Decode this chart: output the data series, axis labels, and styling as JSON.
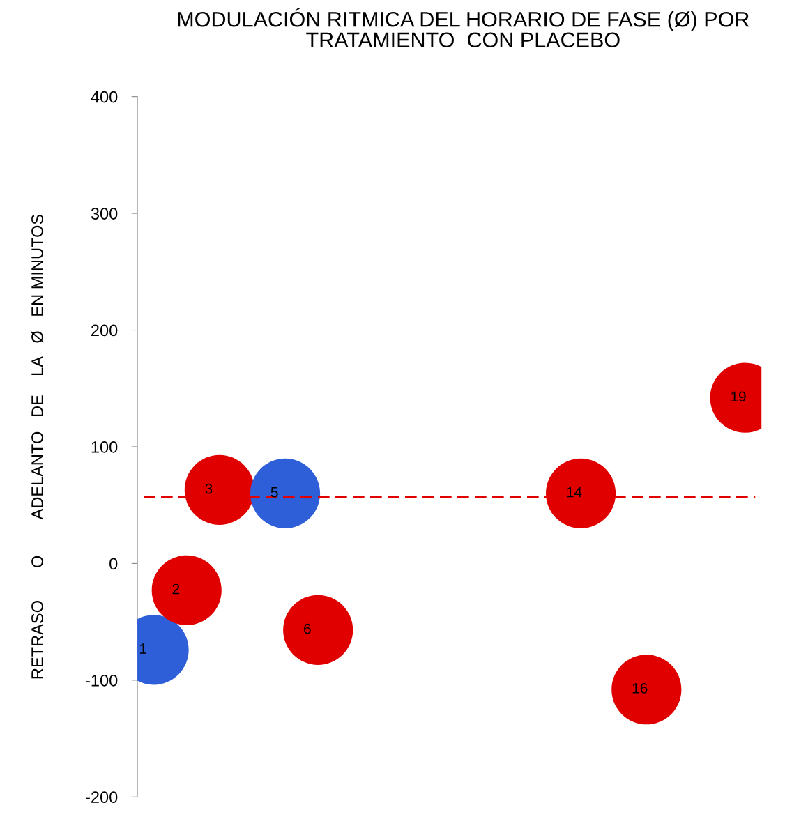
{
  "chart_data": {
    "type": "scatter",
    "title": "MODULACIÓN RITMICA DEL HORARIO DE FASE (Ø) POR\nTRATAMIENTO  CON PLACEBO",
    "ylabel": "RETRASO       O        ADELANTO   DE    LA   Ø   EN MINUTOS",
    "categories": [
      null,
      null,
      null,
      null,
      null,
      null,
      null,
      null,
      null,
      null,
      null,
      null,
      null,
      null,
      null,
      null,
      null,
      null,
      null
    ],
    "series": [
      {
        "name": "1",
        "color": "#2f5fd8",
        "values": [
          -74,
          null,
          null,
          null,
          null,
          null,
          null,
          null,
          null,
          null,
          null,
          null,
          null,
          null,
          null,
          null,
          null,
          null,
          null
        ]
      },
      {
        "name": "2",
        "color": "#e00000",
        "values": [
          null,
          -23,
          null,
          null,
          null,
          null,
          null,
          null,
          null,
          null,
          null,
          null,
          null,
          null,
          null,
          null,
          null,
          null,
          null
        ]
      },
      {
        "name": "3",
        "color": "#e00000",
        "values": [
          null,
          null,
          63,
          null,
          null,
          null,
          null,
          null,
          null,
          null,
          null,
          null,
          null,
          null,
          null,
          null,
          null,
          null,
          null
        ]
      },
      {
        "name": "5",
        "color": "#2f5fd8",
        "values": [
          null,
          null,
          null,
          null,
          60,
          null,
          null,
          null,
          null,
          null,
          null,
          null,
          null,
          null,
          null,
          null,
          null,
          null,
          null
        ]
      },
      {
        "name": "6",
        "color": "#e00000",
        "values": [
          null,
          null,
          null,
          null,
          null,
          -57,
          null,
          null,
          null,
          null,
          null,
          null,
          null,
          null,
          null,
          null,
          null,
          null,
          null
        ]
      },
      {
        "name": "14",
        "color": "#e00000",
        "values": [
          null,
          null,
          null,
          null,
          null,
          null,
          null,
          null,
          null,
          null,
          null,
          null,
          null,
          60,
          null,
          null,
          null,
          null,
          null
        ]
      },
      {
        "name": "16",
        "color": "#e00000",
        "values": [
          null,
          null,
          null,
          null,
          null,
          null,
          null,
          null,
          null,
          null,
          null,
          null,
          null,
          null,
          null,
          -108,
          null,
          null,
          null
        ]
      },
      {
        "name": "19",
        "color": "#e00000",
        "values": [
          null,
          null,
          null,
          null,
          null,
          null,
          null,
          null,
          null,
          null,
          null,
          null,
          null,
          null,
          null,
          null,
          null,
          null,
          142
        ]
      }
    ],
    "marker": "circle",
    "ylim": [
      -200,
      400
    ],
    "yticks": [
      -200,
      -100,
      0,
      100,
      200,
      300,
      400
    ],
    "tick_labels": "y",
    "ref_lines": [
      {
        "axis": "y",
        "value": 57,
        "color": "#e00000",
        "line_style": "dashed"
      }
    ]
  }
}
